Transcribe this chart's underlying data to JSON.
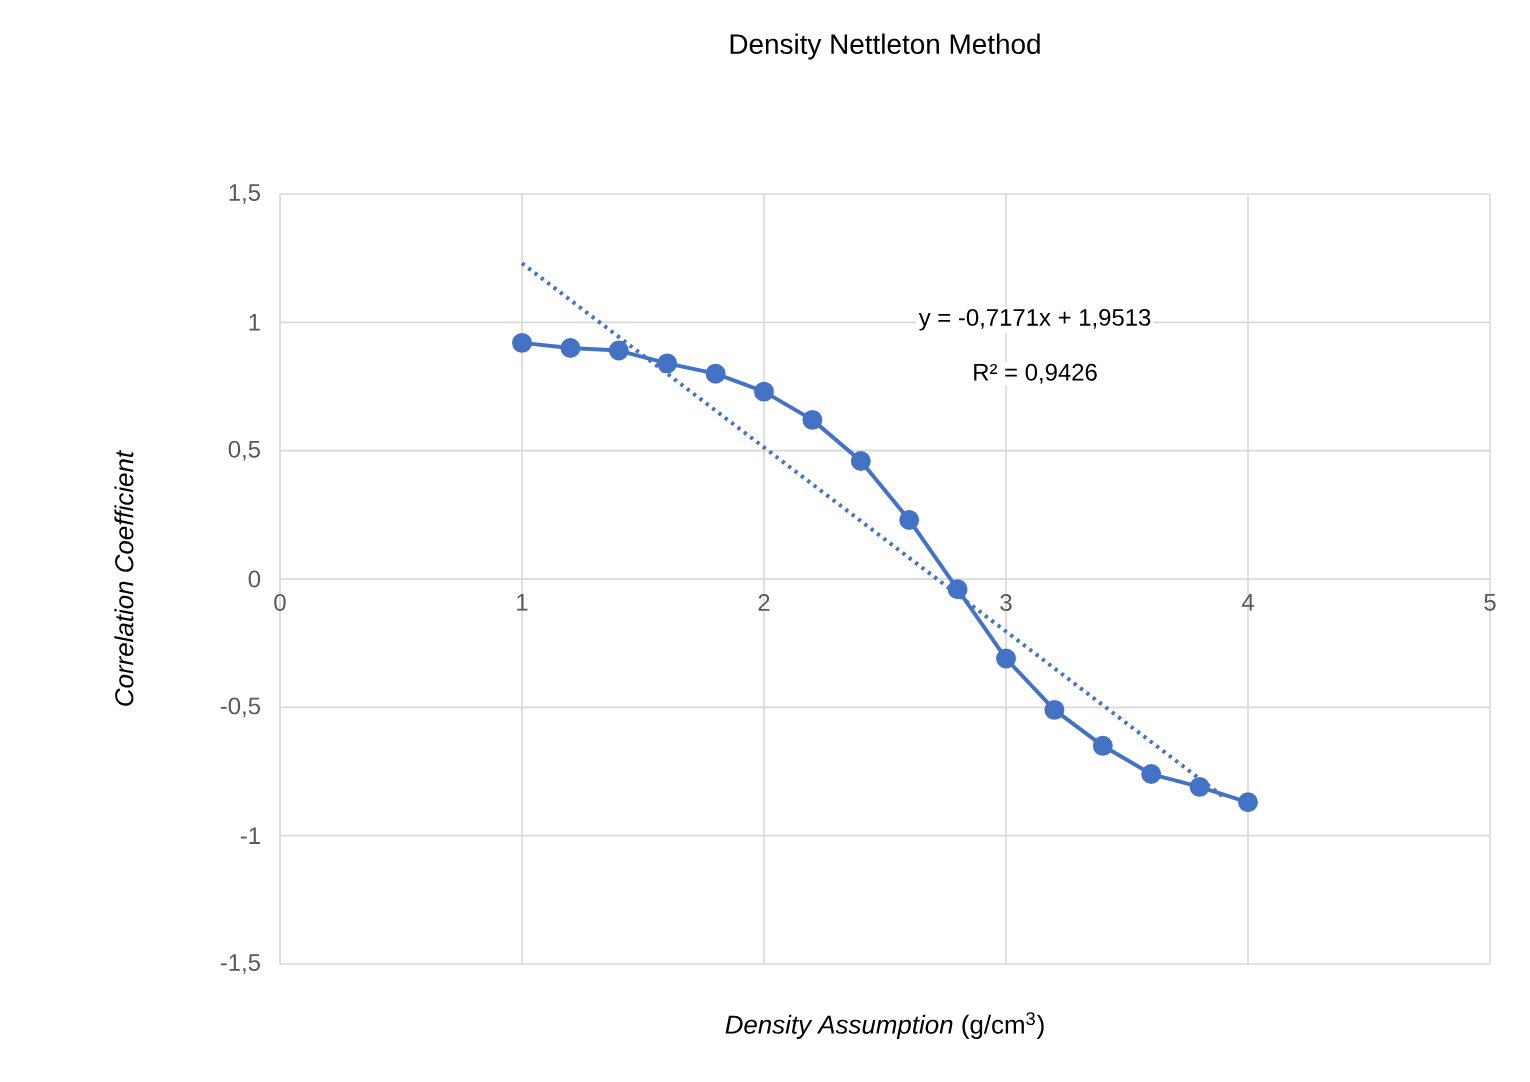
{
  "chart_data": {
    "type": "line",
    "title": "Density Nettleton Method",
    "xlabel": "*Density Assumption* (g/cm$^{3}$)",
    "ylabel": "Correlation Coefficient",
    "xlim": [
      0,
      5
    ],
    "xticks": [
      0,
      1,
      2,
      3,
      4,
      5
    ],
    "ylim": [
      -1.5,
      1.5
    ],
    "yticks": [
      {
        "value": -1.5,
        "label": "-1,5"
      },
      {
        "value": -1,
        "label": "-1"
      },
      {
        "value": -0.5,
        "label": "-0,5"
      },
      {
        "value": 0,
        "label": "0"
      },
      {
        "value": 0.5,
        "label": "0,5"
      },
      {
        "value": 1,
        "label": "1"
      },
      {
        "value": 1.5,
        "label": "1,5"
      }
    ],
    "grid": true,
    "annotations": [
      "y = -0,7171x + 1,9513",
      "R² = 0,9426"
    ],
    "series": [
      {
        "color": "#4472c4",
        "marker": "circle",
        "line_style": "solid",
        "x": [
          1,
          1.2,
          1.4,
          1.6,
          1.8,
          2,
          2.2,
          2.4,
          2.6,
          2.8,
          3,
          3.2,
          3.4,
          3.6,
          3.8,
          4
        ],
        "values": [
          0.92,
          0.9,
          0.89,
          0.84,
          0.8,
          0.73,
          0.62,
          0.46,
          0.23,
          -0.04,
          -0.31,
          -0.51,
          -0.65,
          -0.76,
          -0.81,
          -0.87
        ]
      },
      {
        "type": "line",
        "color": "#4472c4",
        "marker": "none",
        "line_style": "dotted",
        "x": [
          1,
          3.9
        ],
        "values": [
          1.23,
          -0.85
        ]
      }
    ]
  }
}
